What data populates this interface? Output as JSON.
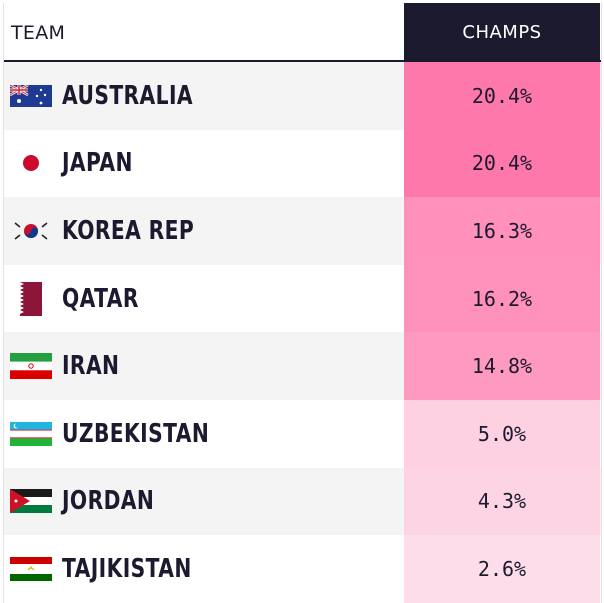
{
  "chart_data": {
    "type": "table",
    "columns": [
      "TEAM",
      "CHAMPS"
    ],
    "rows": [
      {
        "team": "AUSTRALIA",
        "flag": "australia-flag-icon",
        "champs": "20.4%",
        "value": 20.4
      },
      {
        "team": "JAPAN",
        "flag": "japan-flag-icon",
        "champs": "20.4%",
        "value": 20.4
      },
      {
        "team": "KOREA REP",
        "flag": "korea-flag-icon",
        "champs": "16.3%",
        "value": 16.3
      },
      {
        "team": "QATAR",
        "flag": "qatar-flag-icon",
        "champs": "16.2%",
        "value": 16.2
      },
      {
        "team": "IRAN",
        "flag": "iran-flag-icon",
        "champs": "14.8%",
        "value": 14.8
      },
      {
        "team": "UZBEKISTAN",
        "flag": "uzbekistan-flag-icon",
        "champs": "5.0%",
        "value": 5.0
      },
      {
        "team": "JORDAN",
        "flag": "jordan-flag-icon",
        "champs": "4.3%",
        "value": 4.3
      },
      {
        "team": "TAJIKISTAN",
        "flag": "tajikistan-flag-icon",
        "champs": "2.6%",
        "value": 2.6
      }
    ]
  },
  "colors": {
    "header_bg": "#1c1a2e",
    "heat_low": "#fde7f0",
    "heat_high": "#ff78ab"
  }
}
